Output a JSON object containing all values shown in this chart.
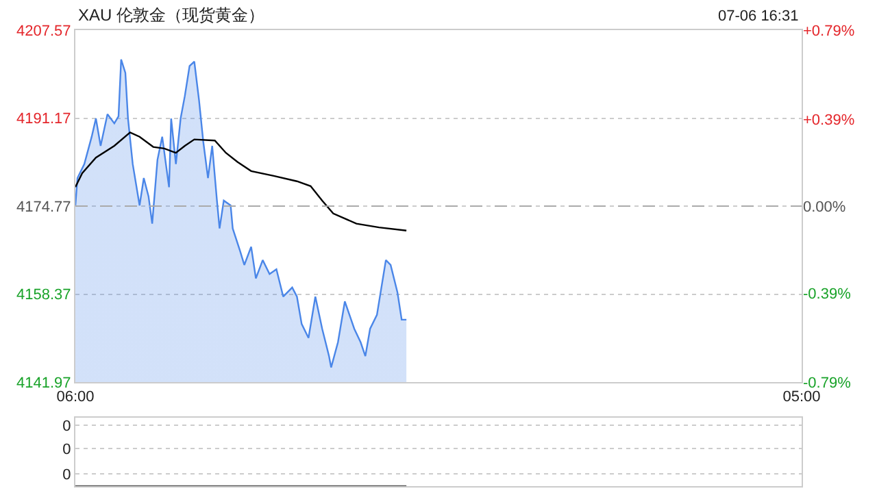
{
  "chart_data": [
    {
      "type": "area",
      "title": "XAU 伦敦金（现货黄金）",
      "annotations": [
        "07-06 16:31"
      ],
      "xlim": [
        "--07-06T06:00",
        "--07-07T05:00"
      ],
      "xticks": [
        {
          "value": "--07-06T06:00",
          "label": "06:00"
        },
        {
          "value": "--07-07T05:00",
          "label": "05:00"
        }
      ],
      "ylim": [
        4141.97,
        4207.57
      ],
      "yticks": [
        4141.97,
        4158.37,
        4174.77,
        4191.17,
        4207.57
      ],
      "y2lim": [
        -0.79,
        0.79
      ],
      "y2ticks": [
        {
          "value": -0.79,
          "label": "-0.79%"
        },
        {
          "value": -0.39,
          "label": "-0.39%"
        },
        {
          "value": 0,
          "label": "0.00%"
        },
        {
          "value": 0.39,
          "label": "+0.39%"
        },
        {
          "value": 0.79,
          "label": "+0.79%"
        }
      ],
      "grid": "y",
      "ref_lines": [
        {
          "axis": "y",
          "value": 4174.77,
          "line_style": "dashed",
          "color": "#aaaaaa"
        }
      ],
      "series": [
        {
          "color": "#4a86e8",
          "x": [
            "--07-06T06:00",
            "--07-06T06:04",
            "--07-06T06:17",
            "--07-06T06:31",
            "--07-06T06:39",
            "--07-06T06:48",
            "--07-06T07:01",
            "--07-06T07:14",
            "--07-06T07:22",
            "--07-06T07:27",
            "--07-06T07:35",
            "--07-06T07:40",
            "--07-06T07:49",
            "--07-06T08:02",
            "--07-06T08:10",
            "--07-06T08:19",
            "--07-06T08:26",
            "--07-06T08:36",
            "--07-06T08:45",
            "--07-06T08:58",
            "--07-06T09:02",
            "--07-06T09:11",
            "--07-06T09:20",
            "--07-06T09:28",
            "--07-06T09:37",
            "--07-06T09:46",
            "--07-06T09:55",
            "--07-06T10:03",
            "--07-06T10:12",
            "--07-06T10:20",
            "--07-06T10:29",
            "--07-06T10:34",
            "--07-06T10:42",
            "--07-06T10:55",
            "--07-06T10:59",
            "--07-06T11:13",
            "--07-06T11:21",
            "--07-06T11:34",
            "--07-06T11:43",
            "--07-06T11:56",
            "--07-06T12:09",
            "--07-06T12:22",
            "--07-06T12:35",
            "--07-06T12:52",
            "--07-06T13:01",
            "--07-06T13:10",
            "--07-06T13:23",
            "--07-06T13:36",
            "--07-06T13:49",
            "--07-06T14:02",
            "--07-06T14:06",
            "--07-06T14:19",
            "--07-06T14:32",
            "--07-06T14:50",
            "--07-06T15:02",
            "--07-06T15:11",
            "--07-06T15:20",
            "--07-06T15:33",
            "--07-06T15:50",
            "--07-06T15:59",
            "--07-06T16:12",
            "--07-06T16:20",
            "--07-06T16:29"
          ],
          "values": [
            4174.9,
            4180.0,
            4182.6,
            4187.7,
            4191.1,
            4186.0,
            4191.9,
            4190.2,
            4191.5,
            4202.1,
            4199.6,
            4191.1,
            4182.6,
            4174.9,
            4180.0,
            4176.6,
            4171.5,
            4183.4,
            4187.7,
            4178.3,
            4191.1,
            4182.6,
            4191.1,
            4195.3,
            4200.9,
            4201.7,
            4194.5,
            4186.8,
            4180.0,
            4186.0,
            4175.8,
            4170.6,
            4175.8,
            4174.9,
            4170.6,
            4166.4,
            4163.8,
            4167.2,
            4161.3,
            4164.7,
            4162.1,
            4163.0,
            4157.9,
            4159.6,
            4157.9,
            4152.8,
            4150.2,
            4157.9,
            4151.9,
            4146.8,
            4144.7,
            4149.4,
            4157.0,
            4151.9,
            4149.4,
            4146.8,
            4151.9,
            4154.5,
            4164.7,
            4163.8,
            4158.7,
            4153.6,
            4153.6
          ]
        },
        {
          "type": "line",
          "color": "#000000",
          "x": [
            "--07-06T06:00",
            "--07-06T06:13",
            "--07-06T06:39",
            "--07-06T07:14",
            "--07-06T07:44",
            "--07-06T08:02",
            "--07-06T08:28",
            "--07-06T08:49",
            "--07-06T09:11",
            "--07-06T09:28",
            "--07-06T09:46",
            "--07-06T10:25",
            "--07-06T10:46",
            "--07-06T11:08",
            "--07-06T11:34",
            "--07-06T12:17",
            "--07-06T13:01",
            "--07-06T13:27",
            "--07-06T13:49",
            "--07-06T14:10",
            "--07-06T14:54",
            "--07-06T15:37",
            "--07-06T16:29"
          ],
          "values": [
            4178.3,
            4180.9,
            4183.8,
            4186.0,
            4188.5,
            4187.7,
            4185.8,
            4185.5,
            4184.7,
            4186.0,
            4187.2,
            4187.0,
            4184.7,
            4183.0,
            4181.3,
            4180.4,
            4179.4,
            4178.5,
            4175.8,
            4173.4,
            4171.5,
            4170.8,
            4170.2
          ]
        }
      ]
    },
    {
      "type": "line",
      "xlim": [
        "--07-06T06:00",
        "--07-07T05:00"
      ],
      "tick_labels": "y",
      "ylim": [
        0,
        0.55
      ],
      "yticks": [
        {
          "value": 0.1,
          "label": "0"
        },
        {
          "value": 0.3,
          "label": "0"
        },
        {
          "value": 0.49,
          "label": "0"
        }
      ],
      "grid": "y",
      "series": [
        {
          "color": "#555555",
          "x": [
            "--07-06T06:00",
            "--07-06T16:29"
          ],
          "values": [
            0,
            0
          ]
        }
      ]
    }
  ]
}
